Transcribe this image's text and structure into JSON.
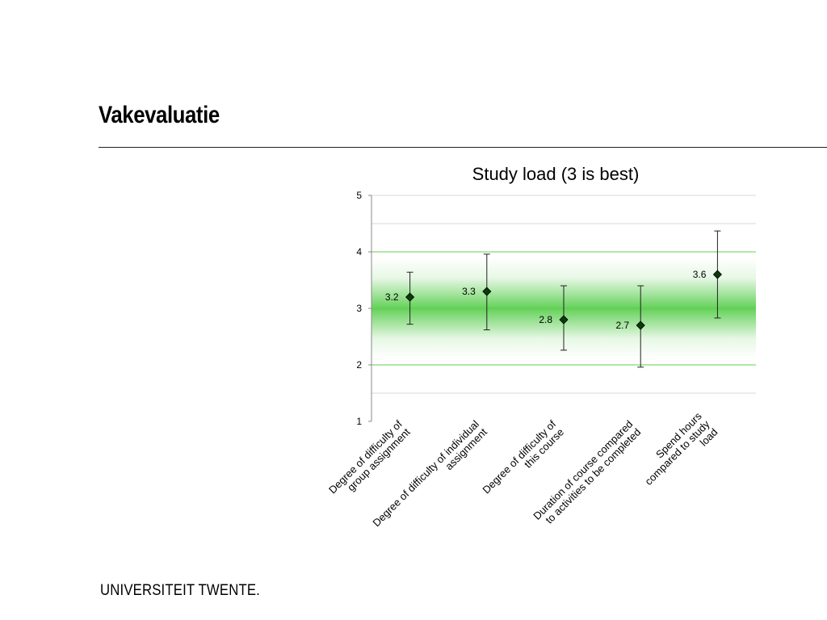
{
  "slide": {
    "title": "Vakevaluatie",
    "footer_logo": "UNIVERSITEIT TWENTE."
  },
  "chart_data": {
    "type": "scatter",
    "title": "Study load (3 is best)",
    "xlabel": "",
    "ylabel": "",
    "ylim": [
      1,
      5
    ],
    "yticks": [
      1,
      2,
      3,
      4,
      5
    ],
    "grid": true,
    "optimal_value": 3,
    "categories": [
      "Degree of difficulty of group assignment",
      "Degree of difficulty of individual assignment",
      "Degree of difficulty of this course",
      "Duration of course compared to activities to be completed",
      "Spend hours compared to study load"
    ],
    "series": [
      {
        "values": [
          3.2,
          3.3,
          2.8,
          2.7,
          3.6
        ],
        "error_low": [
          2.72,
          2.62,
          2.26,
          1.96,
          2.83
        ],
        "error_high": [
          3.64,
          3.96,
          3.4,
          3.4,
          4.37
        ],
        "data_labels": [
          "3.2",
          "3.3",
          "2.8",
          "2.7",
          "3.6"
        ]
      }
    ],
    "category_label_lines": [
      [
        "Degree of difficulty of",
        "group assignment"
      ],
      [
        "Degree of difficulty of individual",
        "assignment"
      ],
      [
        "Degree of difficulty of",
        "this course"
      ],
      [
        "Duration of course compared",
        "to activities to be completed"
      ],
      [
        "Spend hours",
        "compared to study",
        "load"
      ]
    ],
    "colors": {
      "band": "#39c42b",
      "marker": "#0b3a0b",
      "error_bar": "#222222",
      "grid": "#d8d8d8",
      "green_grid": "#62d04e"
    }
  }
}
